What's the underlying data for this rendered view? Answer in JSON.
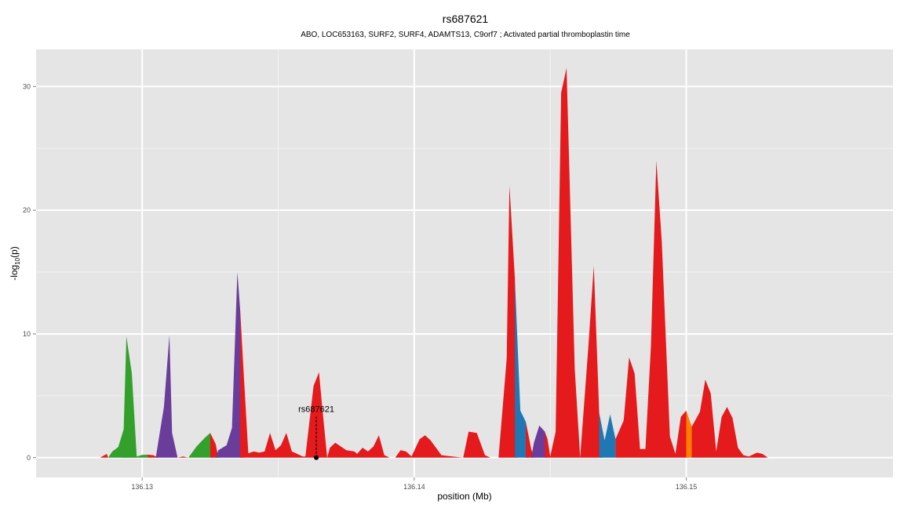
{
  "chart_data": {
    "type": "area",
    "title": "rs687621",
    "subtitle": "ABO, LOC653163, SURF2, SURF4, ADAMTS13, C9orf7 ; Activated partial thromboplastin time",
    "xlabel": "position (Mb)",
    "ylabel_main": "-log",
    "ylabel_sub": "10",
    "ylabel_tail": "(p)",
    "xlim": [
      136.1261,
      136.1576
    ],
    "ylim": [
      -1.6,
      33.0
    ],
    "x_ticks": [
      {
        "value": 136.13,
        "label": "136.13"
      },
      {
        "value": 136.14,
        "label": "136.14"
      },
      {
        "value": 136.15,
        "label": "136.15"
      }
    ],
    "y_ticks": [
      {
        "value": 0,
        "label": "0"
      },
      {
        "value": 10,
        "label": "10"
      },
      {
        "value": 20,
        "label": "20"
      },
      {
        "value": 30,
        "label": "30"
      }
    ],
    "grid": true,
    "colors": {
      "red": "#e41a1c",
      "green": "#33a02c",
      "purple": "#6a3d9a",
      "blue": "#1f78b4",
      "orange": "#ff7f00",
      "panel": "#e5e5e5",
      "grid_major": "#ffffff",
      "grid_minor": "#f2f2f2"
    },
    "series": [
      {
        "color": "red",
        "points": [
          [
            136.12845,
            0
          ],
          [
            136.1287,
            0.3
          ],
          [
            136.12875,
            0
          ]
        ]
      },
      {
        "color": "green",
        "points": [
          [
            136.12875,
            0
          ],
          [
            136.1289,
            0.5
          ],
          [
            136.12912,
            0.85
          ],
          [
            136.12932,
            2.3
          ],
          [
            136.12942,
            9.8
          ],
          [
            136.12962,
            6.8
          ],
          [
            136.1298,
            0
          ],
          [
            136.1302,
            0
          ]
        ]
      },
      {
        "color": "green",
        "points": [
          [
            136.1292,
            0
          ],
          [
            136.1298,
            0.1
          ],
          [
            136.13,
            0.22
          ],
          [
            136.1302,
            0.24
          ],
          [
            136.1302,
            0
          ]
        ]
      },
      {
        "color": "red",
        "points": [
          [
            136.1302,
            0
          ],
          [
            136.1302,
            0.24
          ],
          [
            136.1304,
            0.2
          ],
          [
            136.1306,
            0
          ]
        ]
      },
      {
        "color": "purple",
        "points": [
          [
            136.1305,
            0
          ],
          [
            136.1308,
            4.1
          ],
          [
            136.131,
            9.9
          ],
          [
            136.1311,
            2.0
          ],
          [
            136.1313,
            0
          ]
        ]
      },
      {
        "color": "red",
        "points": [
          [
            136.1313,
            0
          ],
          [
            136.1315,
            0.1
          ],
          [
            136.1317,
            0
          ]
        ]
      },
      {
        "color": "green",
        "points": [
          [
            136.1317,
            0
          ],
          [
            136.132,
            0.9
          ],
          [
            136.1323,
            1.6
          ],
          [
            136.1325,
            2.0
          ],
          [
            136.1326,
            0
          ]
        ]
      },
      {
        "color": "red",
        "points": [
          [
            136.1325,
            0
          ],
          [
            136.1325,
            2.0
          ],
          [
            136.1327,
            1.1
          ],
          [
            136.1328,
            0
          ]
        ]
      },
      {
        "color": "purple",
        "points": [
          [
            136.1327,
            0
          ],
          [
            136.1328,
            0.6
          ],
          [
            136.1331,
            1.0
          ],
          [
            136.1333,
            2.4
          ],
          [
            136.1335,
            15.0
          ],
          [
            136.1336,
            12.0
          ],
          [
            136.1337,
            0
          ]
        ]
      },
      {
        "color": "red",
        "points": [
          [
            136.1336,
            0
          ],
          [
            136.1336,
            12.0
          ],
          [
            136.1337,
            8.0
          ],
          [
            136.1339,
            0.35
          ],
          [
            136.1341,
            0.5
          ],
          [
            136.1343,
            0.4
          ],
          [
            136.1345,
            0.5
          ],
          [
            136.1347,
            2.0
          ],
          [
            136.1349,
            0.6
          ],
          [
            136.1351,
            1.0
          ],
          [
            136.1353,
            2.0
          ],
          [
            136.1355,
            0.5
          ],
          [
            136.1357,
            0.3
          ],
          [
            136.1359,
            0.1
          ],
          [
            136.136,
            0.1
          ],
          [
            136.1363,
            5.8
          ],
          [
            136.1365,
            6.9
          ],
          [
            136.1366,
            4.5
          ],
          [
            136.1368,
            0
          ],
          [
            136.1369,
            0.8
          ],
          [
            136.1371,
            1.2
          ],
          [
            136.1373,
            0.9
          ],
          [
            136.1375,
            0.6
          ],
          [
            136.1378,
            0.5
          ],
          [
            136.1379,
            0.3
          ],
          [
            136.1381,
            0.8
          ],
          [
            136.1383,
            0.5
          ],
          [
            136.1385,
            0.9
          ],
          [
            136.1387,
            1.8
          ],
          [
            136.1389,
            0.2
          ],
          [
            136.1391,
            0
          ],
          [
            136.1393,
            0
          ],
          [
            136.1395,
            0.6
          ],
          [
            136.1397,
            0.5
          ],
          [
            136.1399,
            0.1
          ],
          [
            136.1402,
            1.5
          ],
          [
            136.1404,
            1.8
          ],
          [
            136.1406,
            1.4
          ],
          [
            136.1408,
            0.8
          ],
          [
            136.141,
            0.2
          ],
          [
            136.1414,
            0.1
          ],
          [
            136.1418,
            0
          ],
          [
            136.142,
            2.1
          ],
          [
            136.1423,
            2.0
          ],
          [
            136.1426,
            0.2
          ],
          [
            136.1428,
            0
          ],
          [
            136.1431,
            0
          ],
          [
            136.1434,
            8.0
          ],
          [
            136.1435,
            22.0
          ],
          [
            136.1437,
            14.5
          ],
          [
            136.1438,
            0
          ]
        ]
      },
      {
        "color": "blue",
        "points": [
          [
            136.1437,
            0
          ],
          [
            136.1437,
            14.5
          ],
          [
            136.1439,
            3.8
          ],
          [
            136.1441,
            2.9
          ],
          [
            136.1442,
            0
          ]
        ]
      },
      {
        "color": "red",
        "points": [
          [
            136.1441,
            0
          ],
          [
            136.1441,
            2.9
          ],
          [
            136.1442,
            1.8
          ],
          [
            136.1443,
            0.7
          ],
          [
            136.1444,
            0
          ]
        ]
      },
      {
        "color": "purple",
        "points": [
          [
            136.1443,
            0
          ],
          [
            136.1444,
            1.2
          ],
          [
            136.1446,
            2.6
          ],
          [
            136.1448,
            2.1
          ],
          [
            136.1449,
            0
          ]
        ]
      },
      {
        "color": "red",
        "points": [
          [
            136.1448,
            0
          ],
          [
            136.1448,
            2.1
          ],
          [
            136.1449,
            1.5
          ],
          [
            136.145,
            0.1
          ],
          [
            136.1452,
            2.1
          ],
          [
            136.1454,
            29.5
          ],
          [
            136.1456,
            31.5
          ],
          [
            136.1459,
            7.2
          ],
          [
            136.1461,
            0
          ],
          [
            136.1464,
            8.9
          ],
          [
            136.1466,
            15.5
          ],
          [
            136.1468,
            3.6
          ],
          [
            136.1469,
            0
          ]
        ]
      },
      {
        "color": "blue",
        "points": [
          [
            136.1468,
            0
          ],
          [
            136.1468,
            3.6
          ],
          [
            136.147,
            1.4
          ],
          [
            136.1472,
            3.5
          ],
          [
            136.1474,
            1.5
          ],
          [
            136.1474,
            0
          ]
        ]
      },
      {
        "color": "red",
        "points": [
          [
            136.1474,
            0
          ],
          [
            136.1474,
            1.5
          ],
          [
            136.1477,
            3.0
          ],
          [
            136.1479,
            8.1
          ],
          [
            136.1481,
            6.8
          ],
          [
            136.1483,
            0.7
          ],
          [
            136.1485,
            0.7
          ],
          [
            136.1487,
            9.0
          ],
          [
            136.1489,
            24.0
          ],
          [
            136.1491,
            17.5
          ],
          [
            136.1494,
            1.7
          ],
          [
            136.1496,
            0.3
          ],
          [
            136.1498,
            3.3
          ],
          [
            136.15,
            3.8
          ],
          [
            136.1501,
            0
          ]
        ]
      },
      {
        "color": "orange",
        "points": [
          [
            136.15,
            0
          ],
          [
            136.15,
            3.8
          ],
          [
            136.1502,
            2.5
          ],
          [
            136.1502,
            0
          ]
        ]
      },
      {
        "color": "red",
        "points": [
          [
            136.1502,
            0
          ],
          [
            136.1502,
            2.5
          ],
          [
            136.1505,
            3.7
          ],
          [
            136.1507,
            6.3
          ],
          [
            136.1509,
            5.2
          ],
          [
            136.1511,
            0.5
          ],
          [
            136.1513,
            3.3
          ],
          [
            136.1515,
            4.1
          ],
          [
            136.1517,
            3.2
          ],
          [
            136.1519,
            0.8
          ],
          [
            136.1521,
            0.2
          ],
          [
            136.1523,
            0.1
          ],
          [
            136.1526,
            0.4
          ],
          [
            136.1528,
            0.3
          ],
          [
            136.153,
            0
          ]
        ]
      }
    ],
    "annotations": [
      {
        "label": "rs687621",
        "x": 136.1364,
        "y": 0,
        "top": 3.3
      }
    ]
  }
}
